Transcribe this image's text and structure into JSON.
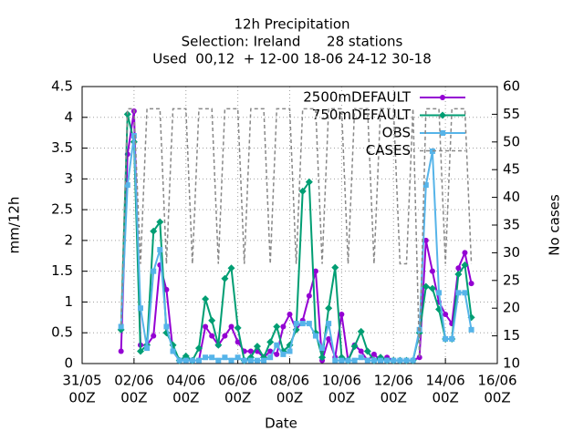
{
  "chart_data": {
    "type": "line",
    "title": [
      "12h Precipitation",
      "Selection: Ireland      28 stations",
      "Used  00,12  + 12-00 18-06 24-12 30-18"
    ],
    "xlabel": "Date",
    "ylabel": "mm/12h",
    "y2label": "No cases",
    "x": [
      "01/06 12Z",
      "01/06 18Z",
      "02/06 00Z",
      "02/06 06Z",
      "02/06 12Z",
      "02/06 18Z",
      "03/06 00Z",
      "03/06 06Z",
      "03/06 12Z",
      "03/06 18Z",
      "04/06 00Z",
      "04/06 06Z",
      "04/06 12Z",
      "04/06 18Z",
      "05/06 00Z",
      "05/06 06Z",
      "05/06 12Z",
      "05/06 18Z",
      "06/06 00Z",
      "06/06 06Z",
      "06/06 12Z",
      "06/06 18Z",
      "07/06 00Z",
      "07/06 06Z",
      "07/06 12Z",
      "07/06 18Z",
      "08/06 00Z",
      "08/06 06Z",
      "08/06 12Z",
      "08/06 18Z",
      "09/06 00Z",
      "09/06 06Z",
      "09/06 12Z",
      "09/06 18Z",
      "10/06 00Z",
      "10/06 06Z",
      "10/06 12Z",
      "10/06 18Z",
      "11/06 00Z",
      "11/06 06Z",
      "11/06 12Z",
      "11/06 18Z",
      "12/06 00Z",
      "12/06 06Z",
      "12/06 12Z",
      "12/06 18Z",
      "13/06 00Z",
      "13/06 06Z",
      "13/06 12Z",
      "13/06 18Z",
      "14/06 00Z",
      "14/06 06Z",
      "14/06 12Z",
      "14/06 18Z",
      "15/06 00Z"
    ],
    "series": [
      {
        "name": "2500mDEFAULT",
        "color": "#9400d3",
        "marker": "circle",
        "values": [
          0.2,
          3.4,
          4.1,
          0.3,
          0.3,
          0.45,
          1.6,
          1.2,
          0.2,
          0.05,
          0.05,
          0.05,
          0.05,
          0.6,
          0.45,
          0.3,
          0.45,
          0.6,
          0.35,
          0.2,
          0.2,
          0.2,
          0.1,
          0.2,
          0.15,
          0.6,
          0.8,
          0.55,
          0.7,
          1.1,
          1.5,
          0.05,
          0.4,
          0.1,
          0.8,
          0.05,
          0.3,
          0.2,
          0.05,
          0.15,
          0.05,
          0.1,
          0.05,
          0.05,
          0.05,
          0.05,
          0.1,
          2.0,
          1.5,
          1.0,
          0.8,
          0.65,
          1.55,
          1.8,
          1.3
        ]
      },
      {
        "name": "750mDEFAULT",
        "color": "#009e73",
        "marker": "diamond",
        "values": [
          0.55,
          4.05,
          3.6,
          0.2,
          0.3,
          2.15,
          2.3,
          0.5,
          0.3,
          0.05,
          0.12,
          0.05,
          0.25,
          1.05,
          0.7,
          0.3,
          1.38,
          1.55,
          0.58,
          0.05,
          0.1,
          0.28,
          0.1,
          0.35,
          0.6,
          0.2,
          0.3,
          0.55,
          2.8,
          2.95,
          0.5,
          0.1,
          0.9,
          1.56,
          0.1,
          0.05,
          0.28,
          0.52,
          0.2,
          0.05,
          0.1,
          0.05,
          0.05,
          0.05,
          0.05,
          0.05,
          0.5,
          1.25,
          1.22,
          0.88,
          0.4,
          0.4,
          1.45,
          1.6,
          0.75
        ]
      },
      {
        "name": "OBS",
        "color": "#56b4e9",
        "marker": "square",
        "values": [
          0.6,
          2.9,
          3.7,
          0.9,
          0.25,
          1.5,
          1.85,
          0.6,
          0.2,
          0.05,
          0.05,
          0.05,
          0.05,
          0.1,
          0.1,
          0.05,
          0.1,
          0.05,
          0.1,
          0.05,
          0.05,
          0.05,
          0.05,
          0.1,
          0.3,
          0.15,
          0.2,
          0.65,
          0.65,
          0.65,
          0.45,
          0.25,
          0.65,
          0.05,
          0.05,
          0.05,
          0.05,
          0.1,
          0.05,
          0.05,
          0.05,
          0.05,
          0.05,
          0.05,
          0.05,
          0.05,
          0.55,
          2.9,
          3.45,
          1.15,
          0.4,
          0.4,
          1.15,
          1.15,
          0.55
        ]
      },
      {
        "name": "CASES",
        "color": "#888888",
        "axis": "y2",
        "dashed": true,
        "values": [
          17,
          56,
          56,
          28,
          56,
          56,
          56,
          28,
          56,
          56,
          56,
          28,
          56,
          56,
          56,
          28,
          56,
          56,
          56,
          28,
          56,
          56,
          56,
          28,
          56,
          56,
          56,
          28,
          56,
          56,
          56,
          28,
          56,
          56,
          56,
          28,
          56,
          56,
          56,
          28,
          56,
          56,
          56,
          28,
          28,
          56,
          11,
          56,
          56,
          56,
          28,
          56,
          56,
          56,
          28
        ]
      }
    ],
    "xlim": [
      "31/05 00Z",
      "16/06 00Z"
    ],
    "xticks": [
      {
        "value": "31/05 00Z",
        "label": [
          "31/05",
          "00Z"
        ]
      },
      {
        "value": "02/06 00Z",
        "label": [
          "02/06",
          "00Z"
        ]
      },
      {
        "value": "04/06 00Z",
        "label": [
          "04/06",
          "00Z"
        ]
      },
      {
        "value": "06/06 00Z",
        "label": [
          "06/06",
          "00Z"
        ]
      },
      {
        "value": "08/06 00Z",
        "label": [
          "08/06",
          "00Z"
        ]
      },
      {
        "value": "10/06 00Z",
        "label": [
          "10/06",
          "00Z"
        ]
      },
      {
        "value": "12/06 00Z",
        "label": [
          "12/06",
          "00Z"
        ]
      },
      {
        "value": "14/06 00Z",
        "label": [
          "14/06",
          "00Z"
        ]
      },
      {
        "value": "16/06 00Z",
        "label": [
          "16/06",
          "00Z"
        ]
      }
    ],
    "ylim": [
      0,
      4.5
    ],
    "yticks": [
      0,
      0.5,
      1,
      1.5,
      2,
      2.5,
      3,
      3.5,
      4,
      4.5
    ],
    "y2lim": [
      10,
      60
    ],
    "y2ticks": [
      10,
      15,
      20,
      25,
      30,
      35,
      40,
      45,
      50,
      55,
      60
    ],
    "grid": true,
    "legend": "upper right"
  }
}
